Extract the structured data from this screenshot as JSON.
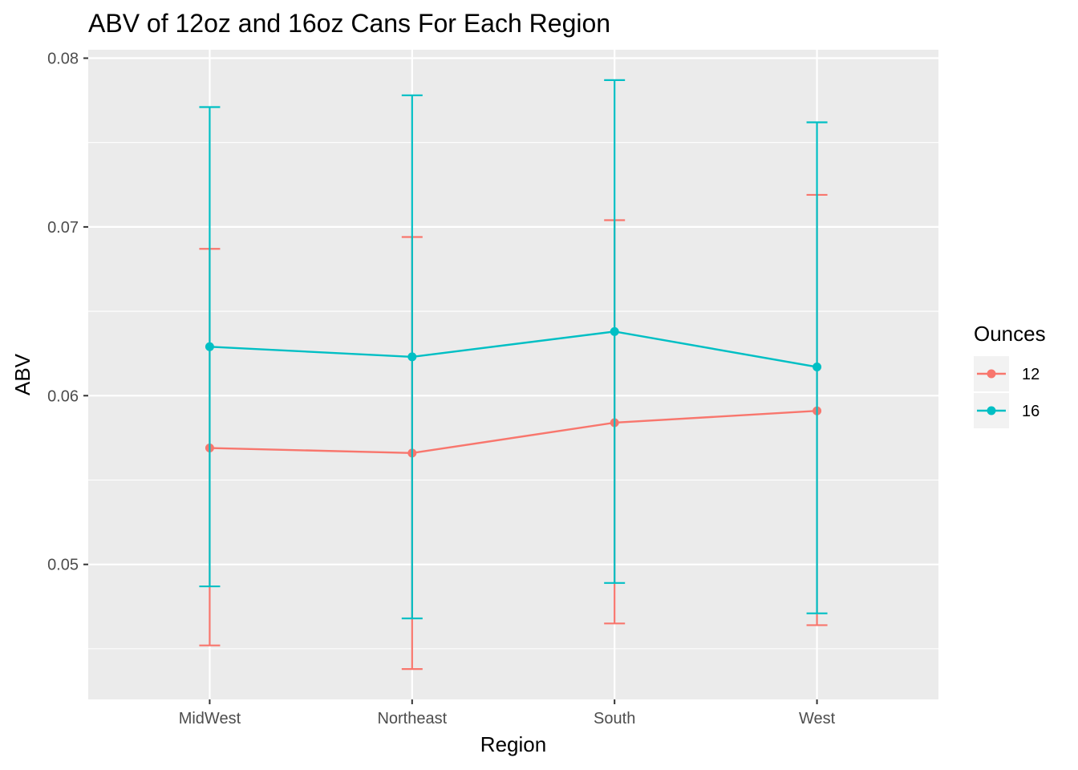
{
  "chart_data": {
    "type": "line",
    "title": "ABV of 12oz and 16oz Cans For Each Region",
    "xlabel": "Region",
    "ylabel": "ABV",
    "categories": [
      "MidWest",
      "Northeast",
      "South",
      "West"
    ],
    "ylim": [
      0.042,
      0.0805
    ],
    "y_ticks": [
      0.05,
      0.06,
      0.07,
      0.08
    ],
    "y_tick_labels": [
      "0.05",
      "0.06",
      "0.07",
      "0.08"
    ],
    "grid": true,
    "error_bars": true,
    "legend": {
      "title": "Ounces",
      "position": "right"
    },
    "series": [
      {
        "name": "12",
        "color": "#F8766D",
        "values": [
          0.0569,
          0.0566,
          0.0584,
          0.0591
        ],
        "lower": [
          0.0452,
          0.0438,
          0.0465,
          0.0464
        ],
        "upper": [
          0.0687,
          0.0694,
          0.0704,
          0.0719
        ]
      },
      {
        "name": "16",
        "color": "#00BFC4",
        "values": [
          0.0629,
          0.0623,
          0.0638,
          0.0617
        ],
        "lower": [
          0.0487,
          0.0468,
          0.0489,
          0.0471
        ],
        "upper": [
          0.0771,
          0.0778,
          0.0787,
          0.0762
        ]
      }
    ]
  }
}
